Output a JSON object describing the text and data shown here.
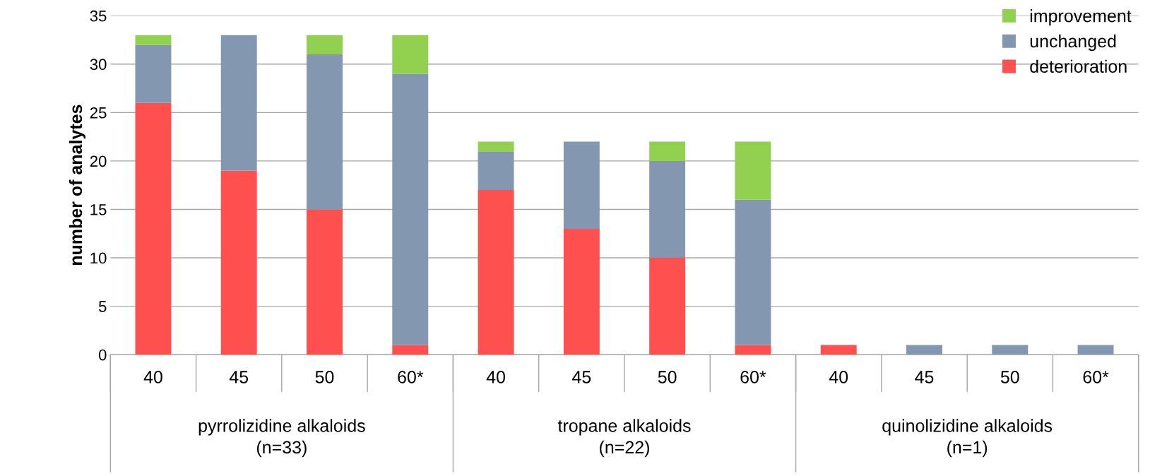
{
  "chart_data": {
    "type": "bar",
    "stacked": true,
    "ylabel": "number of analytes",
    "categories": [
      "40",
      "45",
      "50",
      "60*",
      "40",
      "45",
      "50",
      "60*",
      "40",
      "45",
      "50",
      "60*"
    ],
    "series": [
      {
        "name": "deterioration",
        "color": "#ff5050",
        "values": [
          26,
          19,
          15,
          1,
          17,
          13,
          10,
          1,
          1,
          0,
          0,
          0
        ]
      },
      {
        "name": "unchanged",
        "color": "#8497b0",
        "values": [
          6,
          14,
          16,
          28,
          4,
          9,
          10,
          15,
          0,
          1,
          1,
          1
        ]
      },
      {
        "name": "improvement",
        "color": "#92d050",
        "values": [
          1,
          0,
          2,
          4,
          1,
          0,
          2,
          6,
          0,
          0,
          0,
          0
        ]
      }
    ],
    "ylim": [
      0,
      35
    ],
    "yticks": [
      0,
      5,
      10,
      15,
      20,
      25,
      30,
      35
    ],
    "grid": "y",
    "legend": "top right",
    "annotations": [
      "pyrrolizidine alkaloids\n(n=33)",
      "tropane alkaloids\n(n=22)",
      "quinolizidine alkaloids\n(n=1)"
    ]
  }
}
